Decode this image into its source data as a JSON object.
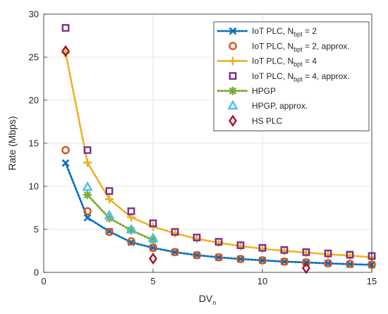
{
  "chart_data": {
    "type": "line",
    "title": "",
    "xlabel": {
      "main": "DV",
      "sub": "n"
    },
    "ylabel": "Rate (Mbps)",
    "xlim": [
      0,
      15
    ],
    "ylim": [
      0,
      30
    ],
    "xticks": [
      0,
      5,
      10,
      15
    ],
    "yticks": [
      0,
      5,
      10,
      15,
      20,
      25,
      30
    ],
    "grid": true,
    "legend_position": "top-right",
    "series": [
      {
        "name_main": "IoT PLC, N",
        "name_sub": "bpt",
        "name_tail": " = 2",
        "color": "#0072BD",
        "marker": "x",
        "line": "dotted",
        "x": [
          1,
          2,
          3,
          4,
          5,
          6,
          7,
          8,
          9,
          10,
          11,
          12,
          13,
          14,
          15
        ],
        "values": [
          12.7,
          6.35,
          4.75,
          3.5,
          2.85,
          2.35,
          2.0,
          1.75,
          1.55,
          1.4,
          1.25,
          1.15,
          1.05,
          0.95,
          0.88
        ]
      },
      {
        "name_main": "IoT PLC, N",
        "name_sub": "bpt",
        "name_tail": " = 2, approx.",
        "color": "#D95319",
        "marker": "circle",
        "line": "none",
        "x": [
          1,
          2,
          3,
          4,
          5,
          6,
          7,
          8,
          9,
          10,
          11,
          12,
          13,
          14,
          15
        ],
        "values": [
          14.2,
          7.1,
          4.7,
          3.6,
          2.85,
          2.35,
          2.0,
          1.75,
          1.55,
          1.4,
          1.25,
          1.15,
          1.05,
          0.97,
          0.9
        ]
      },
      {
        "name_main": "IoT PLC, N",
        "name_sub": "bpt",
        "name_tail": " = 4",
        "color": "#EDB120",
        "marker": "plus",
        "line": "dotted",
        "x": [
          1,
          2,
          3,
          4,
          5,
          6,
          7,
          8,
          9,
          10,
          11,
          12,
          13,
          14,
          15
        ],
        "values": [
          25.5,
          12.75,
          8.5,
          6.4,
          5.3,
          4.55,
          3.9,
          3.45,
          3.05,
          2.75,
          2.5,
          2.3,
          2.1,
          1.95,
          1.75
        ]
      },
      {
        "name_main": "IoT PLC, N",
        "name_sub": "bpt",
        "name_tail": " = 4, approx.",
        "color": "#7E2F8E",
        "marker": "square",
        "line": "none",
        "x": [
          1,
          2,
          3,
          4,
          5,
          6,
          7,
          8,
          9,
          10,
          11,
          12,
          13,
          14,
          15
        ],
        "values": [
          28.4,
          14.2,
          9.45,
          7.1,
          5.7,
          4.7,
          4.05,
          3.55,
          3.15,
          2.85,
          2.6,
          2.35,
          2.2,
          2.05,
          1.9
        ]
      },
      {
        "name_main": "HPGP",
        "name_sub": "",
        "name_tail": "",
        "color": "#77AC30",
        "marker": "asterisk",
        "line": "dotted",
        "x": [
          2,
          3,
          4,
          5
        ],
        "values": [
          9.0,
          6.3,
          4.9,
          3.75
        ]
      },
      {
        "name_main": "HPGP, approx.",
        "name_sub": "",
        "name_tail": "",
        "color": "#4DBEEE",
        "marker": "triangle",
        "line": "none",
        "x": [
          2,
          3,
          4,
          5
        ],
        "values": [
          9.9,
          6.6,
          4.95,
          3.95
        ]
      },
      {
        "name_main": "HS PLC",
        "name_sub": "",
        "name_tail": "",
        "color": "#A2142F",
        "marker": "diamond",
        "line": "none",
        "x": [
          1,
          5,
          12
        ],
        "values": [
          25.7,
          1.6,
          0.5
        ]
      }
    ]
  }
}
